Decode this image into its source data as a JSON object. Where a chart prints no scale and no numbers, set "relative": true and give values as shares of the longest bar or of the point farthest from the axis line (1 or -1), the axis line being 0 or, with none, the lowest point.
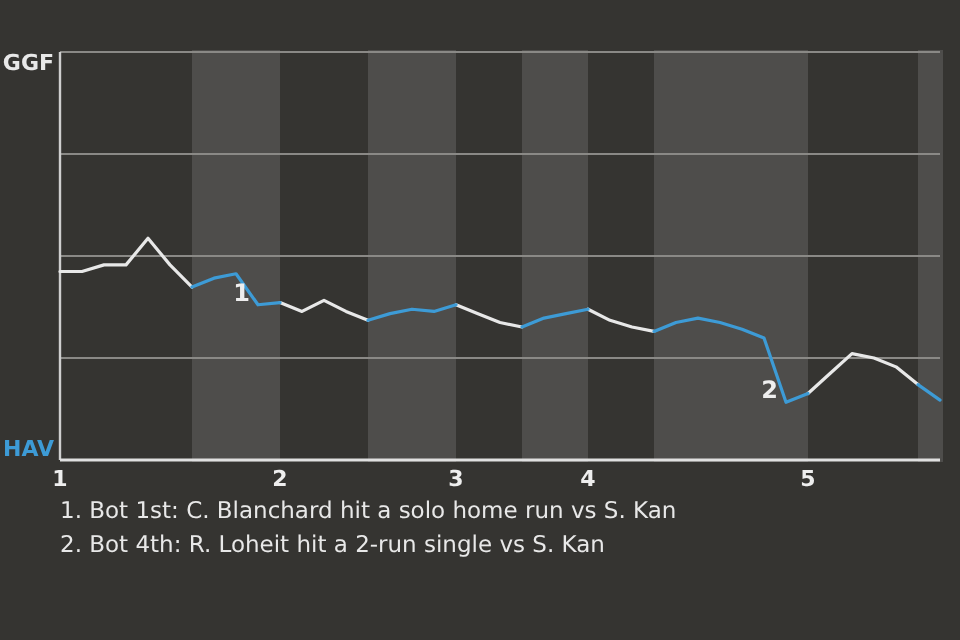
{
  "chart_data": {
    "type": "line",
    "relative": true,
    "categories": [
      "1",
      null,
      null,
      null,
      null,
      null,
      null,
      null,
      null,
      null,
      "2",
      null,
      null,
      null,
      null,
      null,
      null,
      null,
      "3",
      null,
      null,
      null,
      null,
      null,
      "4",
      null,
      null,
      null,
      null,
      null,
      null,
      null,
      null,
      null,
      "5",
      null,
      null,
      null,
      null,
      null,
      null
    ],
    "marker": "none",
    "line_style": "solid",
    "ref_lines": [
      {
        "axis": "y",
        "value": 0.46,
        "color": "#8a8986"
      },
      {
        "axis": "y",
        "value": 0.92,
        "color": "#8a8986"
      },
      {
        "axis": "y",
        "value": 1.38,
        "color": "#8a8986"
      }
    ],
    "series": [
      {
        "name": "GGF",
        "color": "#e8e8e8",
        "values": [
          0.85,
          0.85,
          0.88,
          0.88,
          1.0,
          0.88,
          0.78,
          null,
          null,
          null,
          0.71,
          0.67,
          0.72,
          0.67,
          0.63,
          null,
          null,
          null,
          0.7,
          0.66,
          0.62,
          0.6,
          null,
          null,
          0.68,
          0.63,
          0.6,
          0.58,
          null,
          null,
          null,
          null,
          null,
          null,
          0.3,
          0.39,
          0.48,
          0.46,
          0.42,
          0.34,
          null
        ]
      },
      {
        "name": "HAV",
        "color": "#3d9bd6",
        "values": [
          null,
          null,
          null,
          null,
          null,
          null,
          0.78,
          0.82,
          0.84,
          0.7,
          0.71,
          null,
          null,
          null,
          0.63,
          0.66,
          0.68,
          0.67,
          0.7,
          null,
          null,
          0.6,
          0.64,
          0.66,
          0.68,
          null,
          null,
          0.58,
          0.62,
          0.64,
          0.62,
          0.59,
          0.55,
          0.26,
          0.3,
          null,
          null,
          null,
          null,
          0.34,
          0.27
        ]
      }
    ],
    "annotations": [
      "1",
      "2",
      "1. Bot 1st: C. Blanchard hit a solo home run vs S. Kan",
      "2. Bot 4th: R. Loheit hit a 2-run single vs S. Kan"
    ]
  }
}
